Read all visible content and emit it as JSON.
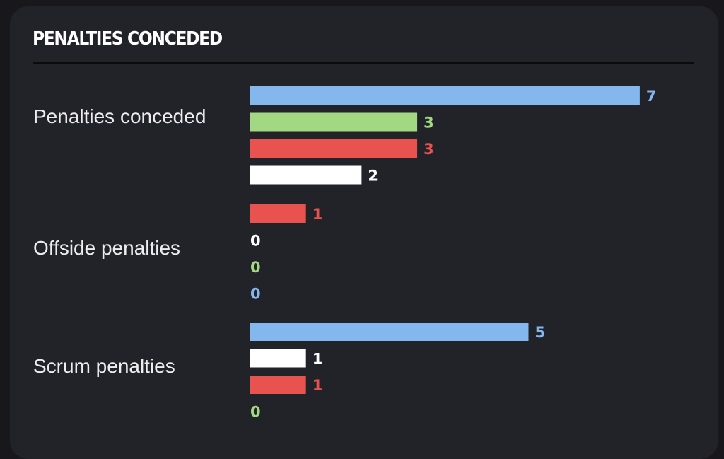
{
  "title": "PENALTIES CONCEDED",
  "colors": {
    "blue": "#85b7ef",
    "green": "#a1d881",
    "red": "#e9534f",
    "white": "#ffffff"
  },
  "chart_data": {
    "type": "bar",
    "orientation": "horizontal",
    "title": "PENALTIES CONCEDED",
    "xlim": [
      0,
      7
    ],
    "grid": false,
    "groups": [
      {
        "label": "Penalties conceded",
        "bars": [
          {
            "value": 7,
            "color": "blue"
          },
          {
            "value": 3,
            "color": "green"
          },
          {
            "value": 3,
            "color": "red"
          },
          {
            "value": 2,
            "color": "white"
          }
        ]
      },
      {
        "label": "Offside penalties",
        "bars": [
          {
            "value": 1,
            "color": "red"
          },
          {
            "value": 0,
            "color": "white"
          },
          {
            "value": 0,
            "color": "green"
          },
          {
            "value": 0,
            "color": "blue"
          }
        ]
      },
      {
        "label": "Scrum penalties",
        "bars": [
          {
            "value": 5,
            "color": "blue"
          },
          {
            "value": 1,
            "color": "white"
          },
          {
            "value": 1,
            "color": "red"
          },
          {
            "value": 0,
            "color": "green"
          }
        ]
      }
    ]
  }
}
